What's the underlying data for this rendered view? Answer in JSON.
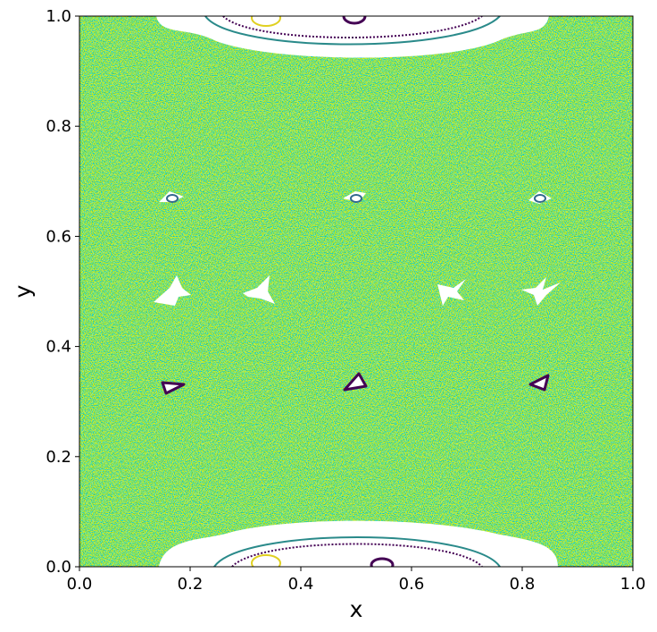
{
  "chart_data": {
    "type": "scatter",
    "xlabel": "x",
    "ylabel": "y",
    "xlim": [
      0,
      1
    ],
    "ylim": [
      0,
      1
    ],
    "xticks": [
      {
        "value": 0,
        "label": "0.0"
      },
      {
        "value": 0.2,
        "label": "0.2"
      },
      {
        "value": 0.4,
        "label": "0.4"
      },
      {
        "value": 0.6,
        "label": "0.6"
      },
      {
        "value": 0.8,
        "label": "0.8"
      },
      {
        "value": 1,
        "label": "1.0"
      }
    ],
    "yticks": [
      {
        "value": 0,
        "label": "0.0"
      },
      {
        "value": 0.2,
        "label": "0.2"
      },
      {
        "value": 0.4,
        "label": "0.4"
      },
      {
        "value": 0.6,
        "label": "0.6"
      },
      {
        "value": 0.8,
        "label": "0.8"
      },
      {
        "value": 1,
        "label": "1.0"
      }
    ]
  }
}
